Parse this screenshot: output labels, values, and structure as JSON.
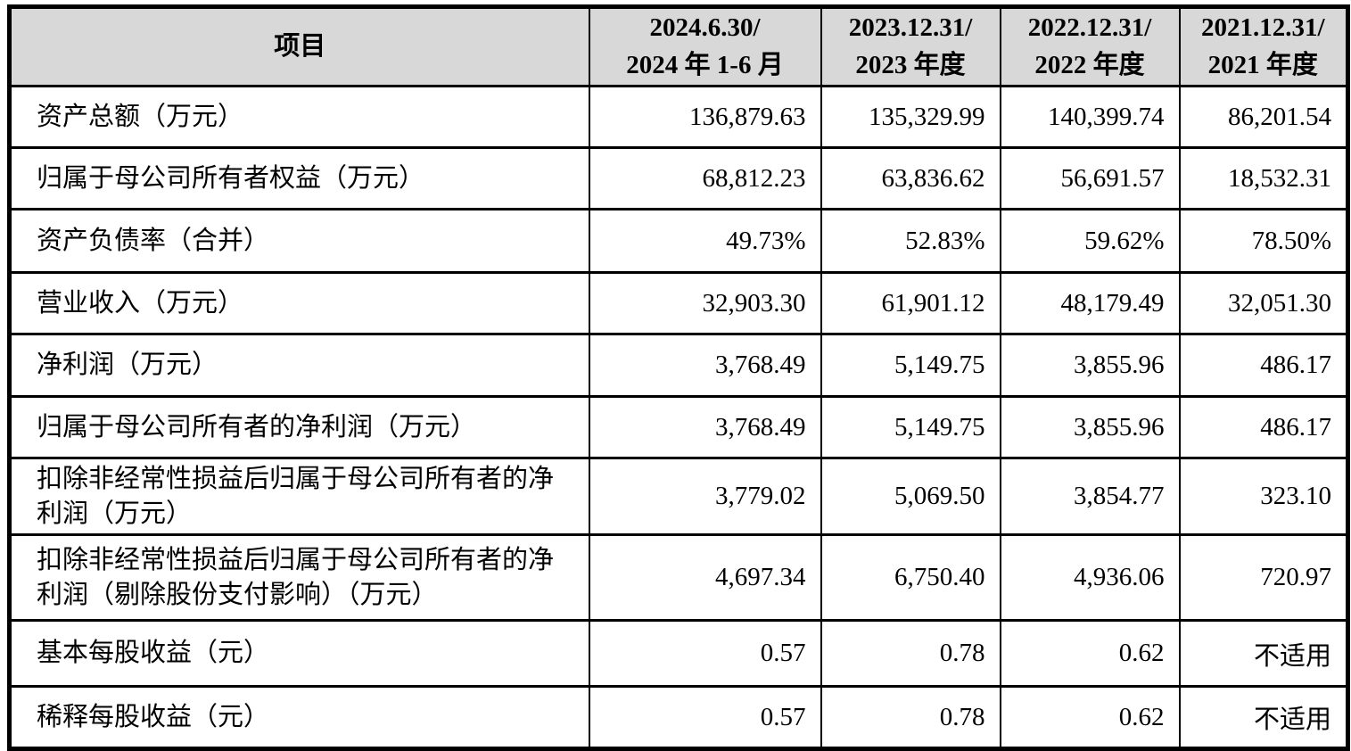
{
  "table": {
    "header": {
      "item_label": "项目",
      "columns": [
        {
          "line1": "2024.6.30/",
          "line2": "2024 年 1-6 月"
        },
        {
          "line1": "2023.12.31/",
          "line2": "2023 年度"
        },
        {
          "line1": "2022.12.31/",
          "line2": "2022 年度"
        },
        {
          "line1": "2021.12.31/",
          "line2": "2021 年度"
        }
      ]
    },
    "rows": [
      {
        "label": "资产总额（万元）",
        "values": [
          "136,879.63",
          "135,329.99",
          "140,399.74",
          "86,201.54"
        ]
      },
      {
        "label": "归属于母公司所有者权益（万元）",
        "values": [
          "68,812.23",
          "63,836.62",
          "56,691.57",
          "18,532.31"
        ]
      },
      {
        "label": "资产负债率（合并）",
        "values": [
          "49.73%",
          "52.83%",
          "59.62%",
          "78.50%"
        ]
      },
      {
        "label": "营业收入（万元）",
        "values": [
          "32,903.30",
          "61,901.12",
          "48,179.49",
          "32,051.30"
        ]
      },
      {
        "label": "净利润（万元）",
        "values": [
          "3,768.49",
          "5,149.75",
          "3,855.96",
          "486.17"
        ]
      },
      {
        "label": "归属于母公司所有者的净利润（万元）",
        "values": [
          "3,768.49",
          "5,149.75",
          "3,855.96",
          "486.17"
        ]
      },
      {
        "label": "扣除非经常性损益后归属于母公司所有者的净利润（万元）",
        "values": [
          "3,779.02",
          "5,069.50",
          "3,854.77",
          "323.10"
        ]
      },
      {
        "label": "扣除非经常性损益后归属于母公司所有者的净利润（剔除股份支付影响）（万元）",
        "values": [
          "4,697.34",
          "6,750.40",
          "4,936.06",
          "720.97"
        ]
      },
      {
        "label": "基本每股收益（元）",
        "values": [
          "0.57",
          "0.78",
          "0.62",
          "不适用"
        ]
      },
      {
        "label": "稀释每股收益（元）",
        "values": [
          "0.57",
          "0.78",
          "0.62",
          "不适用"
        ]
      }
    ]
  },
  "colors": {
    "header_bg": "#d8d8d8",
    "border": "#000000",
    "text": "#000000"
  }
}
